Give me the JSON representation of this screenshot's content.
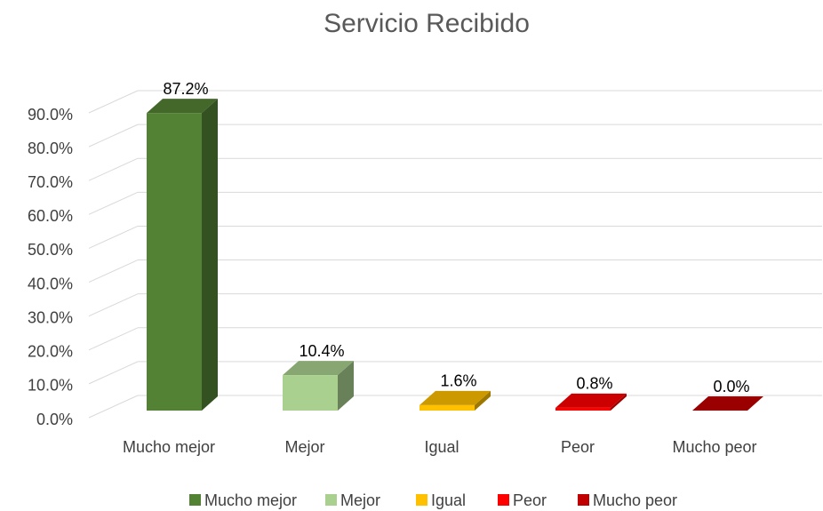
{
  "chart_data": {
    "type": "bar3d",
    "title": "Servicio Recibido",
    "categories": [
      "Mucho mejor",
      "Mejor",
      "Igual",
      "Peor",
      "Mucho peor"
    ],
    "values": [
      87.2,
      10.4,
      1.6,
      0.8,
      0.0
    ],
    "value_labels": [
      "87.2%",
      "10.4%",
      "1.6%",
      "0.8%",
      "0.0%"
    ],
    "colors": [
      "#548235",
      "#a9d08e",
      "#ffc000",
      "#ff0000",
      "#c00000"
    ],
    "ylim": [
      0,
      90
    ],
    "yticks": [
      {
        "value": 0,
        "label": "0.0%"
      },
      {
        "value": 10,
        "label": "10.0%"
      },
      {
        "value": 20,
        "label": "20.0%"
      },
      {
        "value": 30,
        "label": "30.0%"
      },
      {
        "value": 40,
        "label": "40.0%"
      },
      {
        "value": 50,
        "label": "50.0%"
      },
      {
        "value": 60,
        "label": "60.0%"
      },
      {
        "value": 70,
        "label": "70.0%"
      },
      {
        "value": 80,
        "label": "80.0%"
      },
      {
        "value": 90,
        "label": "90.0%"
      }
    ],
    "grid": true,
    "legend": "bottom"
  }
}
